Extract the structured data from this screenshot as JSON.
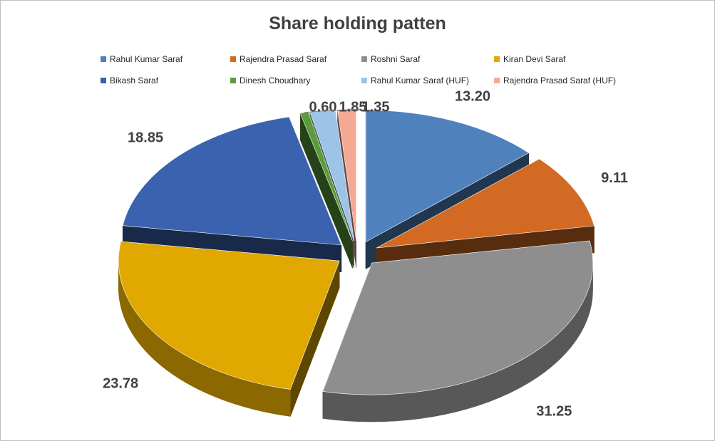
{
  "chart_data": {
    "type": "pie",
    "title": "Share holding patten",
    "legend_position": "top",
    "slices": [
      {
        "label": "Rahul Kumar Saraf",
        "value": 13.2,
        "value_label": "13.20",
        "color": "#4f81bd"
      },
      {
        "label": "Rajendra Prasad Saraf",
        "value": 9.11,
        "value_label": "9.11",
        "color": "#d26a23"
      },
      {
        "label": "Roshni Saraf",
        "value": 31.25,
        "value_label": "31.25",
        "color": "#8e8e8e"
      },
      {
        "label": "Kiran Devi Saraf",
        "value": 23.78,
        "value_label": "23.78",
        "color": "#e0a800"
      },
      {
        "label": "Bikash Saraf",
        "value": 18.85,
        "value_label": "18.85",
        "color": "#3b62ae"
      },
      {
        "label": "Dinesh Choudhary",
        "value": 0.6,
        "value_label": "0.60",
        "color": "#5b9c3a"
      },
      {
        "label": "Rahul Kumar Saraf (HUF)",
        "value": 1.85,
        "value_label": "1.85",
        "color": "#9dc3e6"
      },
      {
        "label": "Rajendra Prasad Saraf (HUF)",
        "value": 1.35,
        "value_label": "1.35",
        "color": "#f4a994"
      }
    ]
  }
}
